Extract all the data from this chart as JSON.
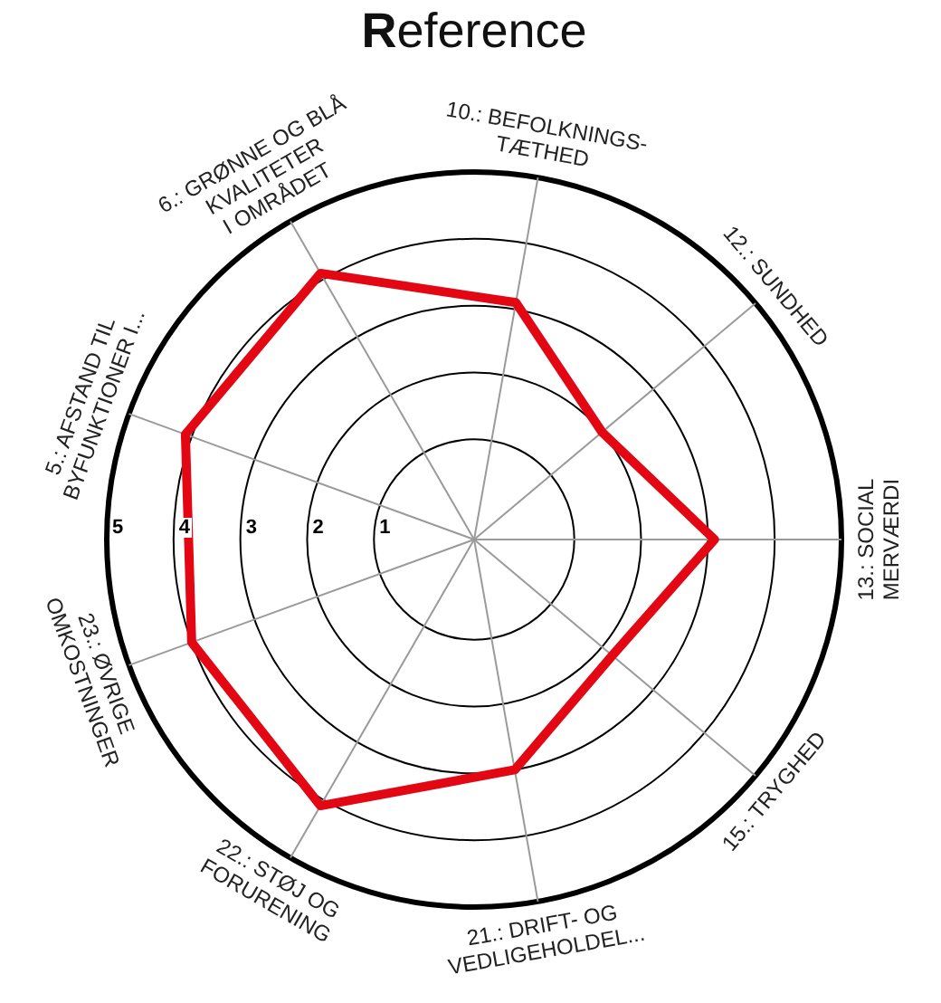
{
  "chart_data": {
    "type": "radar",
    "title": "Reference",
    "categories": [
      "10.: BEFOLKNINGS-\nTÆTHED",
      "12.: SUNDHED",
      "13.: SOCIAL\nMERVÆRDI",
      "15.: TRYGHED",
      "21.: DRIFT- OG\nVEDLIGEHOLDEL...",
      "22.: STØJ OG\nFORURENING",
      "23.: ØVRIGE\nOMKOSTNINGER",
      "5.: AFSTAND TIL\nBYFUNKTIONER I...",
      "6.: GRØNNE OG BLÅ\nKVALITETER\nI OMRÅDET"
    ],
    "series": [
      {
        "color": "#e30613",
        "values": [
          3.1,
          2.0,
          3.1,
          2.2,
          3.0,
          4.1,
          4.0,
          4.1,
          4.1
        ]
      }
    ],
    "ylim": [
      -0.5,
      5
    ],
    "yticks": [
      1,
      2,
      3,
      4,
      5
    ],
    "grid": true,
    "marker": "none",
    "line_style": "solid"
  }
}
